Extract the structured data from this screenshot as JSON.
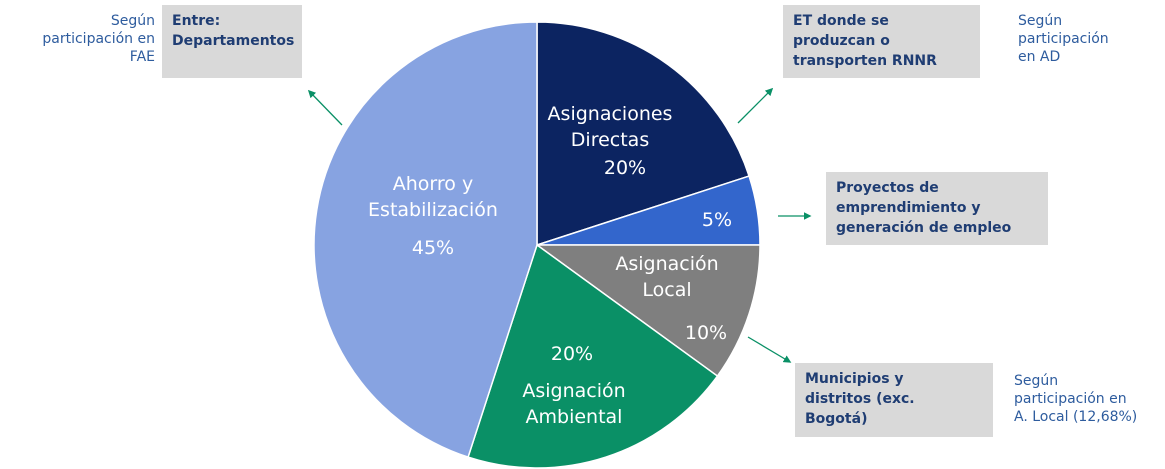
{
  "chart_data": {
    "type": "pie",
    "categories": [
      "Asignaciones\nDirectas",
      "",
      "Asignación\nLocal",
      "Asignación\nAmbiental",
      "Ahorro y\nEstabilización"
    ],
    "values": [
      20,
      5,
      10,
      20,
      45
    ],
    "value_labels": [
      "20%",
      "5%",
      "10%",
      "20%",
      "45%"
    ],
    "colors": [
      "#0c2461",
      "#3366cc",
      "#7f7f7f",
      "#0a9066",
      "#87a3e1"
    ],
    "annotations": [
      {
        "box": "Entre:\nDepartamentos",
        "note": "Según\nparticipación en\nFAE"
      },
      {
        "box": "ET donde se\nproduzcan o\ntransporten RNNR",
        "note": "Según\nparticipación\nen AD"
      },
      {
        "box": "Proyectos de\nemprendimiento y\ngeneración de empleo"
      },
      {
        "box": "Municipios y\ndistritos (exc.\nBogotá)",
        "note": "Según\nparticipación en\nA. Local (12,68%)"
      }
    ]
  }
}
